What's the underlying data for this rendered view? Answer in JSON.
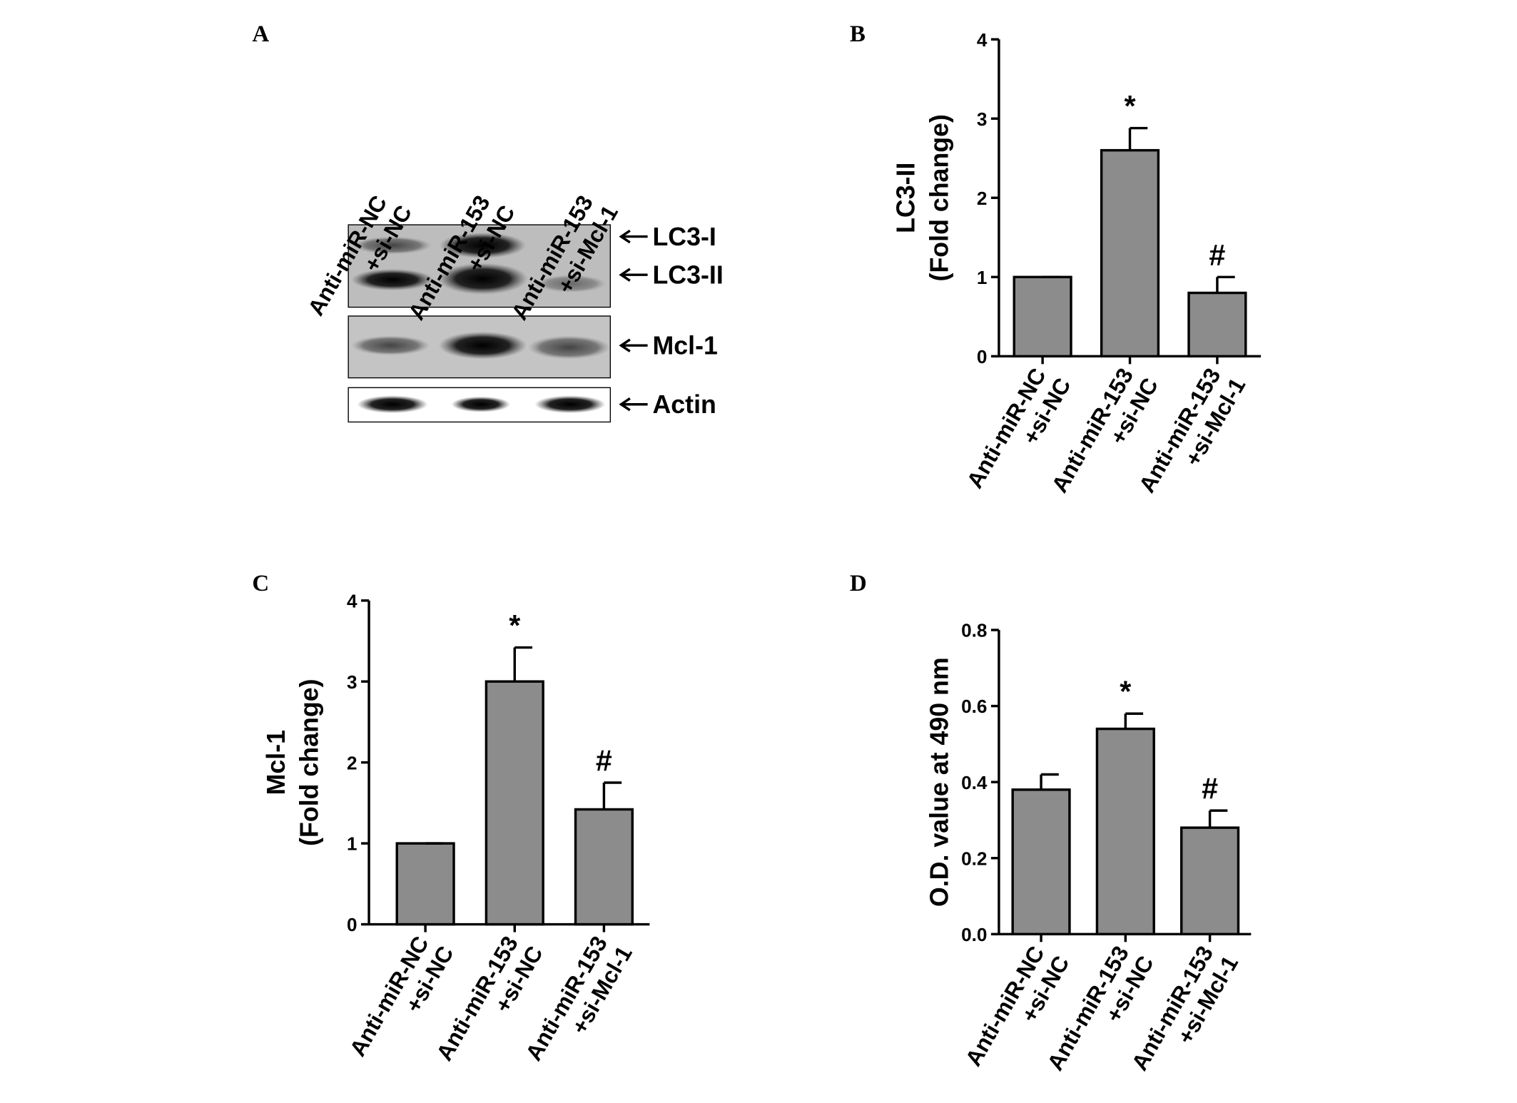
{
  "blot": {
    "panel_label": "A",
    "lanes": [
      [
        "Anti-miR-NC",
        "+si-NC"
      ],
      [
        "Anti-miR-153",
        "+si-NC"
      ],
      [
        "Anti-miR-153",
        "+si-Mcl-1"
      ]
    ],
    "bands": [
      "LC3-I",
      "LC3-II",
      "Mcl-1",
      "Actin"
    ]
  },
  "chart_data": [
    {
      "type": "bar",
      "panel_label": "B",
      "ylabel": [
        "LC3-II",
        "(Fold change)"
      ],
      "categories": [
        [
          "Anti-miR-NC",
          "+si-NC"
        ],
        [
          "Anti-miR-153",
          "+si-NC"
        ],
        [
          "Anti-miR-153",
          "+si-Mcl-1"
        ]
      ],
      "values": [
        1,
        2.6,
        0.8
      ],
      "errors": [
        0,
        0.28,
        0.2
      ],
      "annotations": [
        {
          "index": 1,
          "text": "*"
        },
        {
          "index": 2,
          "text": "#"
        }
      ],
      "ylim": [
        0,
        4
      ],
      "yticks": [
        0,
        1,
        2,
        3,
        4
      ],
      "color": "#8c8c8c"
    },
    {
      "type": "bar",
      "panel_label": "C",
      "ylabel": [
        "Mcl-1",
        "(Fold change)"
      ],
      "categories": [
        [
          "Anti-miR-NC",
          "+si-NC"
        ],
        [
          "Anti-miR-153",
          "+si-NC"
        ],
        [
          "Anti-miR-153",
          "+si-Mcl-1"
        ]
      ],
      "values": [
        1,
        3.0,
        1.42
      ],
      "errors": [
        0,
        0.42,
        0.33
      ],
      "annotations": [
        {
          "index": 1,
          "text": "*"
        },
        {
          "index": 2,
          "text": "#"
        }
      ],
      "ylim": [
        0,
        4
      ],
      "yticks": [
        0,
        1,
        2,
        3,
        4
      ],
      "color": "#8c8c8c"
    },
    {
      "type": "bar",
      "panel_label": "D",
      "ylabel": [
        "O.D. value at 490 nm"
      ],
      "categories": [
        [
          "Anti-miR-NC",
          "+si-NC"
        ],
        [
          "Anti-miR-153",
          "+si-NC"
        ],
        [
          "Anti-miR-153",
          "+si-Mcl-1"
        ]
      ],
      "values": [
        0.38,
        0.54,
        0.28
      ],
      "errors": [
        0.04,
        0.04,
        0.045
      ],
      "annotations": [
        {
          "index": 1,
          "text": "*"
        },
        {
          "index": 2,
          "text": "#"
        }
      ],
      "ylim": [
        0,
        0.8
      ],
      "yticks": [
        {
          "value": 0,
          "label": "0.0"
        },
        0.2,
        0.4,
        0.6,
        0.8
      ],
      "color": "#8c8c8c"
    }
  ]
}
